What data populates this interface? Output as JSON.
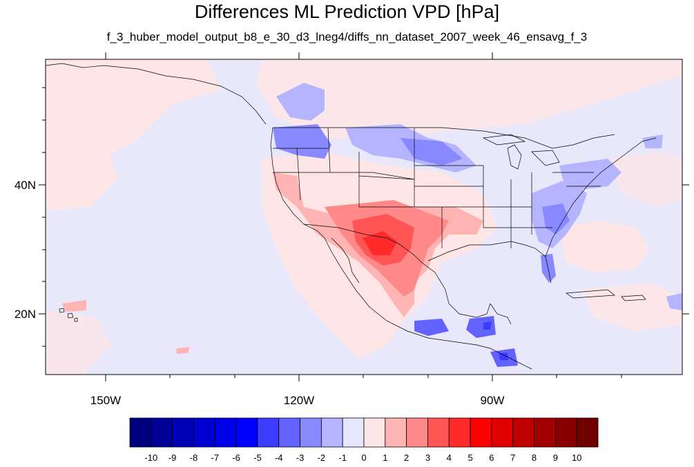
{
  "title": "Differences ML Prediction VPD [hPa]",
  "subtitle": "f_3_huber_model_output_b8_e_30_d3_lneg4/diffs_nn_dataset_2007_week_46_ensavg_f_3",
  "axes": {
    "lon_labels": [
      "150W",
      "120W",
      "90W"
    ],
    "lat_labels": [
      "40N",
      "20N"
    ]
  },
  "colorbar": {
    "labels": [
      "-10",
      "-9",
      "-8",
      "-7",
      "-6",
      "-5",
      "-4",
      "-3",
      "-2",
      "-1",
      "0",
      "1",
      "2",
      "3",
      "4",
      "5",
      "6",
      "7",
      "8",
      "9",
      "10"
    ],
    "colors": [
      "#00007f",
      "#000096",
      "#0000b4",
      "#0000d2",
      "#0000e8",
      "#0000ff",
      "#3c3cff",
      "#6262ff",
      "#8888ff",
      "#b4b4ff",
      "#e6e6ff",
      "#ffe6e6",
      "#ffb4b4",
      "#ff8888",
      "#ff5555",
      "#ff2a2a",
      "#ff0000",
      "#e00000",
      "#c00000",
      "#a00000",
      "#8a0000",
      "#700000"
    ]
  },
  "colors": {
    "background_field": "#e8e8fa",
    "neg_light": "#b4b4ff",
    "neg_mid": "#8888ff",
    "neg_strong": "#6262ff",
    "neg_deep": "#3c3cff",
    "pos_light": "#ffe6e6",
    "pos_mid": "#ffb4b4",
    "pos_strong": "#ff8888",
    "pos_hot": "#ff5555"
  }
}
